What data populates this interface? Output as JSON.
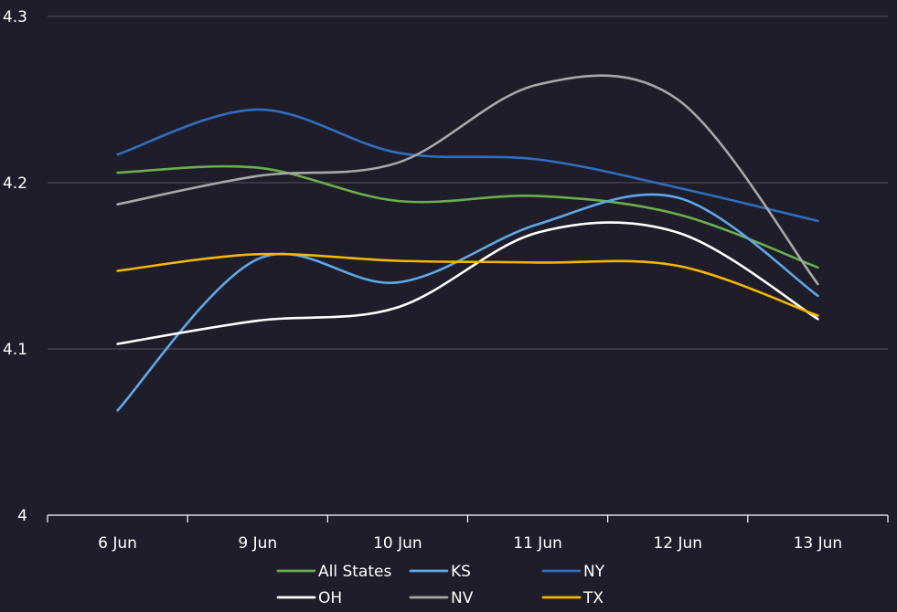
{
  "chart_data": {
    "type": "line",
    "title": "",
    "xlabel": "",
    "ylabel": "",
    "categories": [
      "6 Jun",
      "9 Jun",
      "10 Jun",
      "11 Jun",
      "12 Jun",
      "13 Jun"
    ],
    "ylim": [
      4,
      4.3
    ],
    "yticks": [
      "4",
      "4.1",
      "4.2",
      "4.3"
    ],
    "grid": true,
    "legend_position": "bottom",
    "background_color": "#1f1d29",
    "gridline_color": "#4a4858",
    "series": [
      {
        "name": "All States",
        "color": "#6ab04c",
        "values": [
          4.206,
          4.209,
          4.189,
          4.192,
          4.181,
          4.149
        ]
      },
      {
        "name": "KS",
        "color": "#5da9e9",
        "values": [
          4.063,
          4.154,
          4.14,
          4.175,
          4.191,
          4.132
        ]
      },
      {
        "name": "NY",
        "color": "#2f6fc0",
        "values": [
          4.217,
          4.244,
          4.218,
          4.214,
          4.197,
          4.177
        ]
      },
      {
        "name": "OH",
        "color": "#ffffff",
        "values": [
          4.103,
          4.117,
          4.125,
          4.17,
          4.17,
          4.118
        ]
      },
      {
        "name": "NV",
        "color": "#a8a8a8",
        "values": [
          4.187,
          4.204,
          4.212,
          4.259,
          4.25,
          4.139
        ]
      },
      {
        "name": "TX",
        "color": "#f5b800",
        "values": [
          4.147,
          4.157,
          4.153,
          4.152,
          4.15,
          4.12
        ]
      }
    ]
  }
}
